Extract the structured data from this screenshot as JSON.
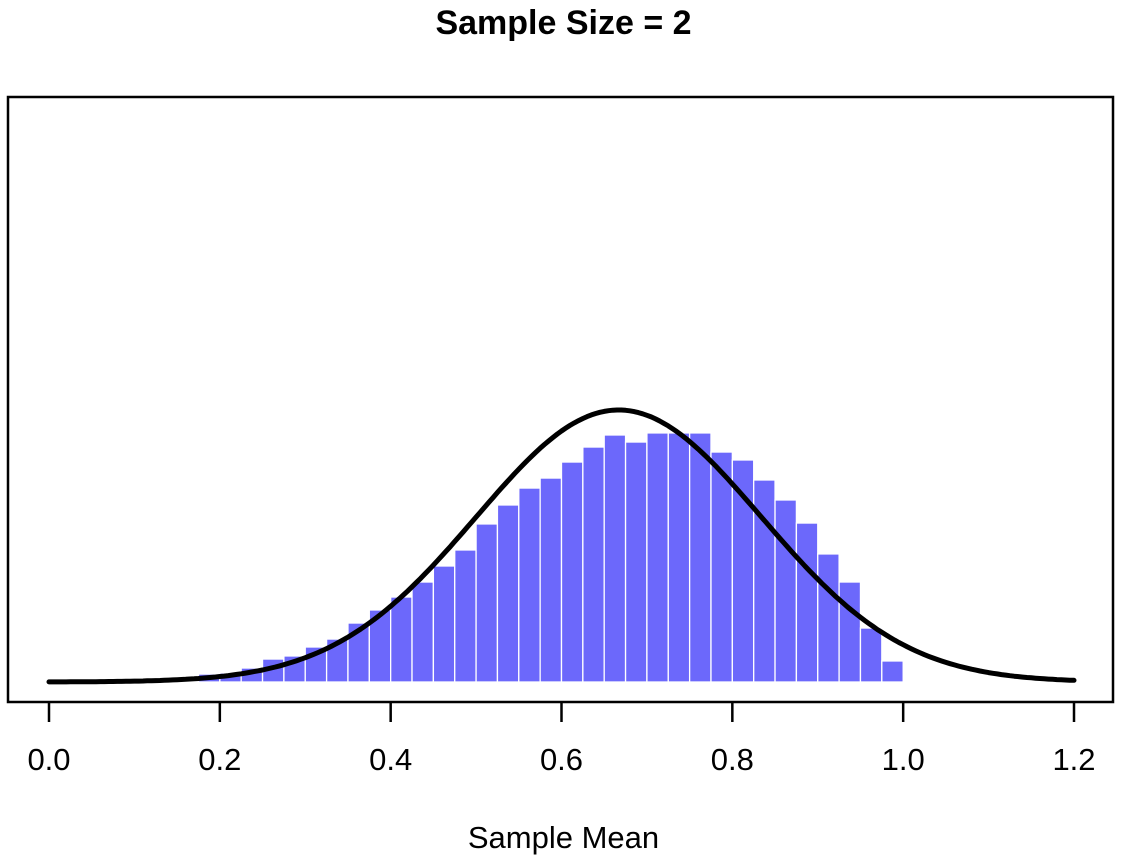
{
  "chart_data": {
    "type": "bar",
    "subtype": "density-histogram-with-normal-curve",
    "title": "Sample Size = 2",
    "xlabel": "Sample Mean",
    "ylabel": "",
    "x_tick_labels": [
      "0.0",
      "0.2",
      "0.4",
      "0.6",
      "0.8",
      "1.0",
      "1.2"
    ],
    "x_tick_values": [
      0.0,
      0.2,
      0.4,
      0.6,
      0.8,
      1.0,
      1.2
    ],
    "xlim": [
      0.0,
      1.2
    ],
    "ylim": [
      0,
      5.15
    ],
    "y_axis_hidden": true,
    "grid": false,
    "legend": null,
    "bins": {
      "bin_width": 0.025,
      "bin_start": 0.175,
      "bin_end": 1.0,
      "densities": [
        0.07,
        0.079,
        0.123,
        0.202,
        0.229,
        0.308,
        0.378,
        0.519,
        0.634,
        0.748,
        0.88,
        1.021,
        1.162,
        1.391,
        1.558,
        1.707,
        1.795,
        1.936,
        2.068,
        2.174,
        2.112,
        2.192,
        2.192,
        2.192,
        2.024,
        1.954,
        1.778,
        1.602,
        1.399,
        1.127,
        0.88,
        0.475,
        0.185
      ]
    },
    "curve": {
      "shape": "normal",
      "mean": 0.667,
      "sd": 0.167,
      "peak_density": 2.394,
      "x_range": [
        0.0,
        1.2
      ]
    },
    "colors": {
      "bar_fill": "#6C68FB",
      "bar_border": "#FFFFFF",
      "curve": "#000000",
      "box_border": "#000000",
      "text": "#000000",
      "background": "#FFFFFF"
    }
  }
}
